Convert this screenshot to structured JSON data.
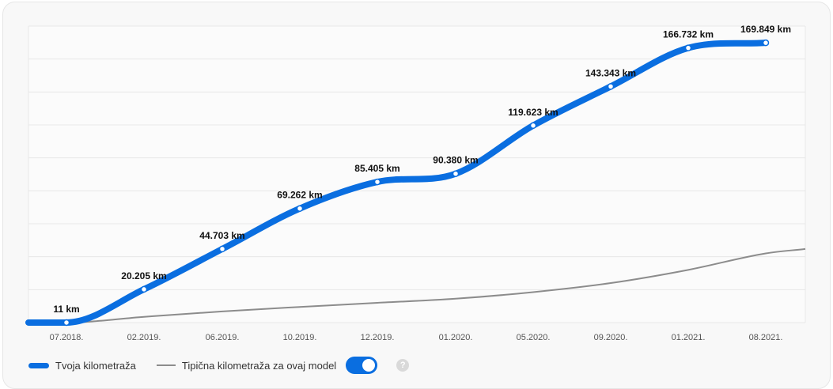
{
  "chart_data": {
    "type": "line",
    "categories": [
      "07.2018.",
      "02.2019.",
      "06.2019.",
      "10.2019.",
      "12.2019.",
      "01.2020.",
      "05.2020.",
      "09.2020.",
      "01.2021.",
      "08.2021."
    ],
    "series": [
      {
        "name": "Tvoja kilometraža",
        "color": "#0a6ee0",
        "values": [
          11,
          20205,
          44703,
          69262,
          85405,
          90380,
          119623,
          143343,
          166732,
          169849
        ],
        "labels": [
          "11 km",
          "20.205 km",
          "44.703 km",
          "69.262 km",
          "85.405 km",
          "90.380 km",
          "119.623 km",
          "143.343 km",
          "166.732 km",
          "169.849 km"
        ]
      },
      {
        "name": "Tipična kilometraža za ovaj model",
        "color": "#8c8c8c",
        "values": [
          0,
          3500,
          6800,
          9500,
          12000,
          14500,
          18500,
          24000,
          32000,
          42000
        ]
      }
    ],
    "ylim": [
      0,
      180000
    ],
    "grid": true,
    "legend": "bottom-left"
  },
  "legend": {
    "toggle_on": true,
    "help_icon": "question-icon"
  }
}
